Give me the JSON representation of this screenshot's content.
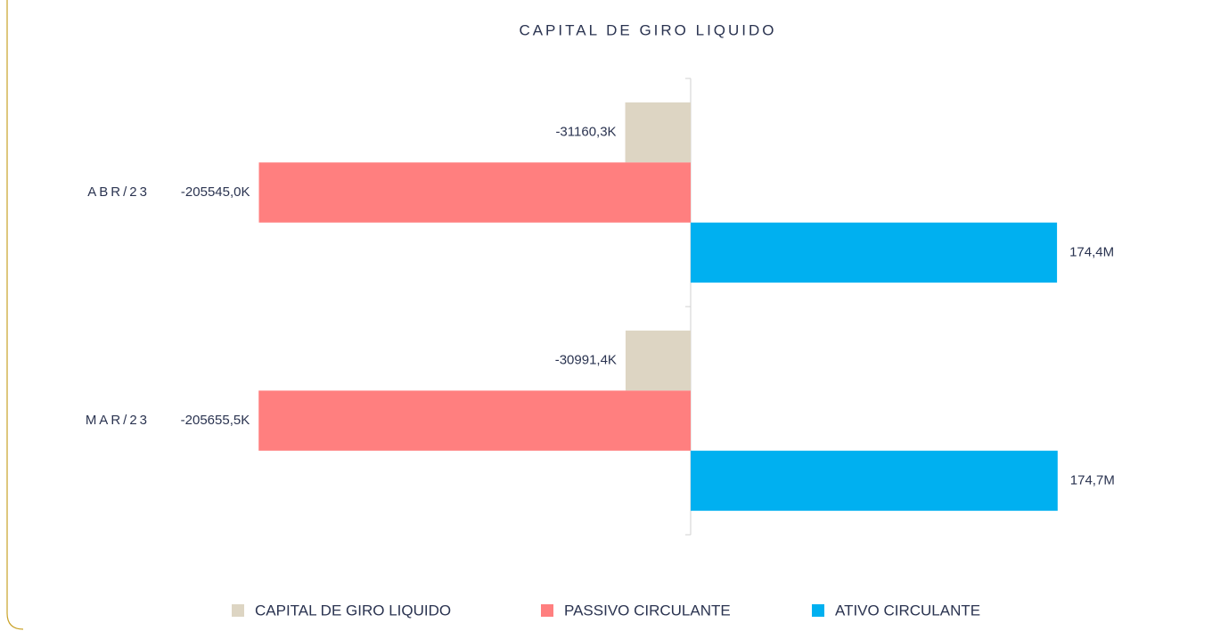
{
  "chart_data": {
    "type": "barh",
    "title": "CAPITAL DE GIRO LIQUIDO",
    "categories": [
      "ABR/23",
      "MAR/23"
    ],
    "series": [
      {
        "name": "CAPITAL DE GIRO LIQUIDO",
        "color": "#ddd5c3",
        "values": [
          -31160.3,
          -30991.4
        ],
        "value_labels": [
          "-31160,3K",
          "-30991,4K"
        ]
      },
      {
        "name": "PASSIVO CIRCULANTE",
        "color": "#ff7f7f",
        "values": [
          -205545.0,
          -205655.5
        ],
        "value_labels": [
          "-205545,0K",
          "-205655,5K"
        ]
      },
      {
        "name": "ATIVO CIRCULANTE",
        "color": "#00b0f0",
        "values": [
          174400,
          174700
        ],
        "value_labels": [
          "174,4M",
          "174,7M"
        ]
      }
    ],
    "xlim": [
      -210000,
      210000
    ],
    "legend": "bottom"
  }
}
